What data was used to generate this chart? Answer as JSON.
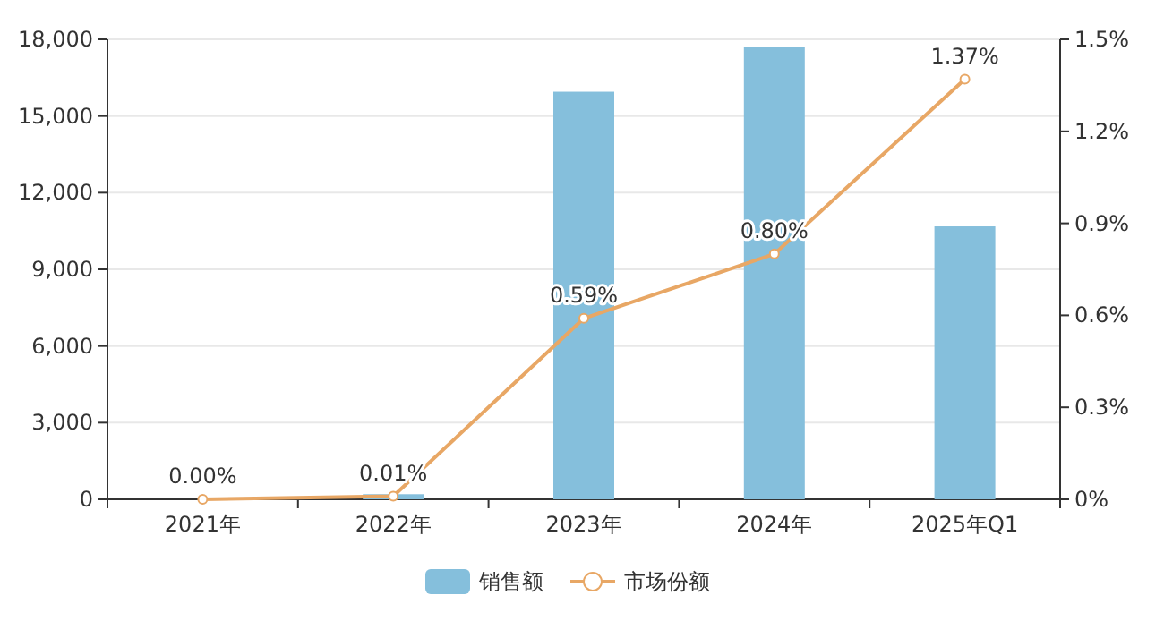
{
  "chart_data": {
    "type": "bar",
    "categories": [
      "2021年",
      "2022年",
      "2023年",
      "2024年",
      "2025年Q1"
    ],
    "series": [
      {
        "name": "销售额",
        "color": "#85bfdc",
        "values": [
          0,
          200,
          15950,
          17700,
          10680
        ]
      },
      {
        "name": "市场份额",
        "type": "line",
        "axis": "y2",
        "color": "#e8a765",
        "marker": "circle",
        "values": [
          0.0,
          0.01,
          0.59,
          0.8,
          1.37
        ],
        "value_labels": [
          "0.00%",
          "0.01%",
          "0.59%",
          "0.80%",
          "1.37%"
        ]
      }
    ],
    "ylim": [
      0,
      18000
    ],
    "yticks": [
      0,
      {
        "value": 3000,
        "label": "3,000"
      },
      {
        "value": 6000,
        "label": "6,000"
      },
      {
        "value": 9000,
        "label": "9,000"
      },
      {
        "value": 12000,
        "label": "12,000"
      },
      {
        "value": 15000,
        "label": "15,000"
      },
      {
        "value": 18000,
        "label": "18,000"
      }
    ],
    "y2lim": [
      0,
      1.5
    ],
    "y2ticks": [
      {
        "value": 0,
        "label": "0%"
      },
      {
        "value": 0.3,
        "label": "0.3%"
      },
      {
        "value": 0.6,
        "label": "0.6%"
      },
      {
        "value": 0.9,
        "label": "0.9%"
      },
      {
        "value": 1.2,
        "label": "1.2%"
      },
      {
        "value": 1.5,
        "label": "1.5%"
      }
    ],
    "grid": "y",
    "legend": "bottom"
  }
}
